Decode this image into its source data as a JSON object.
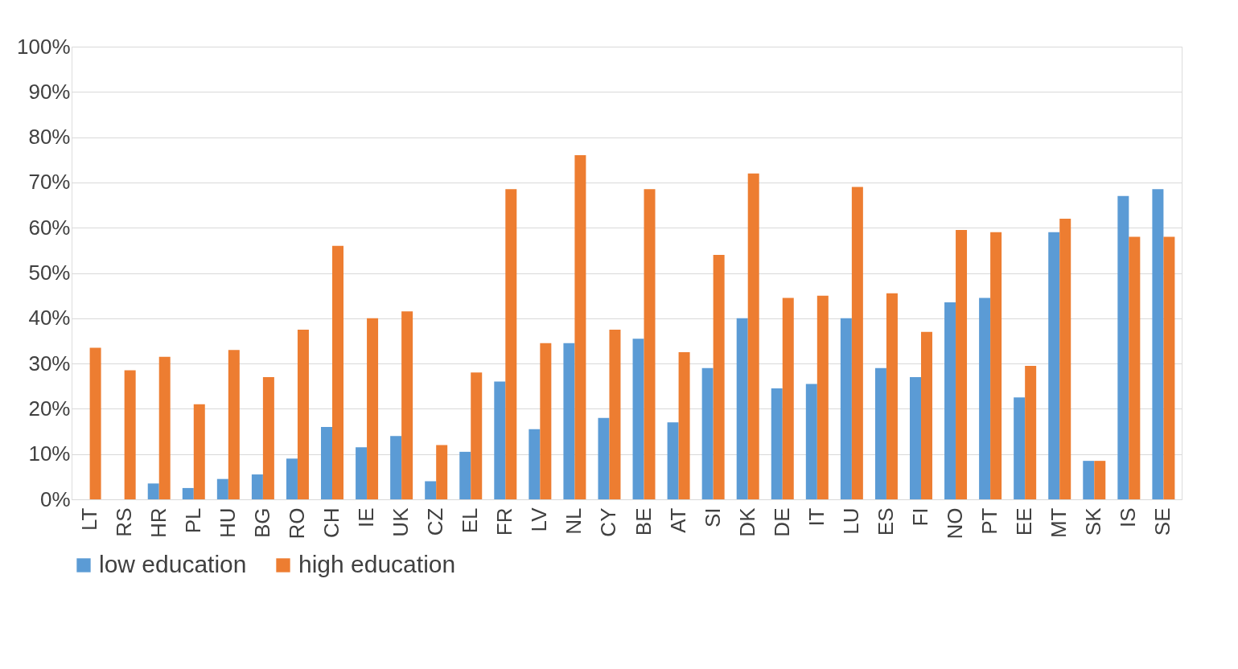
{
  "chart_data": {
    "type": "bar",
    "categories": [
      "LT",
      "RS",
      "HR",
      "PL",
      "HU",
      "BG",
      "RO",
      "CH",
      "IE",
      "UK",
      "CZ",
      "EL",
      "FR",
      "LV",
      "NL",
      "CY",
      "BE",
      "AT",
      "SI",
      "DK",
      "DE",
      "IT",
      "LU",
      "ES",
      "FI",
      "NO",
      "PT",
      "EE",
      "MT",
      "SK",
      "IS",
      "SE"
    ],
    "series": [
      {
        "name": "low education",
        "color": "#5b9bd5",
        "values": [
          null,
          null,
          3.5,
          2.5,
          4.5,
          5.5,
          9,
          16,
          11.5,
          14,
          4,
          10.5,
          26,
          15.5,
          34.5,
          18,
          35.5,
          17,
          29,
          40,
          24.5,
          25.5,
          40,
          29,
          27,
          43.5,
          44.5,
          22.5,
          59,
          8.5,
          67,
          68.5
        ]
      },
      {
        "name": "high education",
        "color": "#ed7d31",
        "values": [
          33.5,
          28.5,
          31.5,
          21,
          33,
          27,
          37.5,
          56,
          40,
          41.5,
          12,
          28,
          68.5,
          34.5,
          76,
          37.5,
          68.5,
          32.5,
          54,
          72,
          44.5,
          45,
          69,
          45.5,
          37,
          59.5,
          59,
          29.5,
          62,
          8.5,
          58,
          58
        ]
      }
    ],
    "ylim": [
      0,
      100
    ],
    "yticks": [
      {
        "value": 0,
        "label": "0%"
      },
      {
        "value": 10,
        "label": "10%"
      },
      {
        "value": 20,
        "label": "20%"
      },
      {
        "value": 30,
        "label": "30%"
      },
      {
        "value": 40,
        "label": "40%"
      },
      {
        "value": 50,
        "label": "50%"
      },
      {
        "value": 60,
        "label": "60%"
      },
      {
        "value": 70,
        "label": "70%"
      },
      {
        "value": 80,
        "label": "80%"
      },
      {
        "value": 90,
        "label": "90%"
      },
      {
        "value": 100,
        "label": "100%"
      }
    ],
    "grid": "y",
    "legend": "bottom"
  }
}
